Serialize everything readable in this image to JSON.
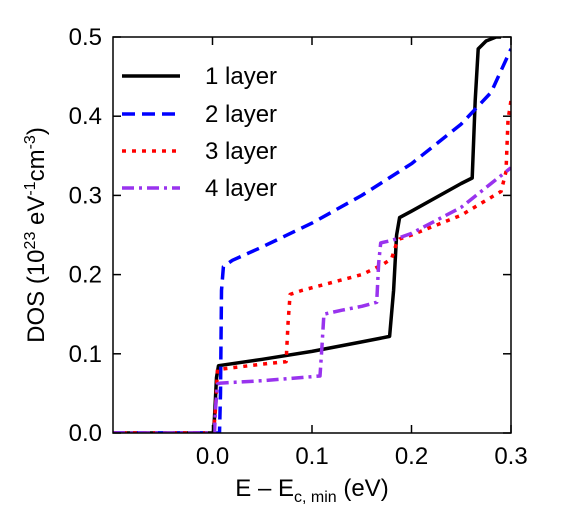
{
  "chart_data": {
    "type": "line",
    "xlabel": {
      "base": "E – E",
      "sub": "c, min",
      "unit": " (eV)"
    },
    "ylabel": {
      "p1": "DOS (10",
      "sup1": "23",
      "p2": " eV",
      "sup2": "-1",
      "p3": "cm",
      "sup3": "-3",
      "p4": ")"
    },
    "xlim": [
      -0.1,
      0.3
    ],
    "ylim": [
      0,
      0.5
    ],
    "xticks": [
      {
        "value": 0.0,
        "label": "0.0"
      },
      {
        "value": 0.1,
        "label": "0.1"
      },
      {
        "value": 0.2,
        "label": "0.2"
      },
      {
        "value": 0.3,
        "label": "0.3"
      }
    ],
    "yticks": [
      {
        "value": 0.0,
        "label": "0.0"
      },
      {
        "value": 0.1,
        "label": "0.1"
      },
      {
        "value": 0.2,
        "label": "0.2"
      },
      {
        "value": 0.3,
        "label": "0.3"
      },
      {
        "value": 0.4,
        "label": "0.4"
      },
      {
        "value": 0.5,
        "label": "0.5"
      }
    ],
    "grid": false,
    "legend_position": "top-left",
    "series": [
      {
        "name": "1 layer",
        "color": "#000000",
        "style": "solid",
        "x": [
          -0.1,
          0.001,
          0.002,
          0.004,
          0.006,
          0.05,
          0.1,
          0.15,
          0.178,
          0.182,
          0.185,
          0.188,
          0.2,
          0.25,
          0.261,
          0.264,
          0.267,
          0.275,
          0.285,
          0.29
        ],
        "y": [
          0,
          0,
          0.02,
          0.07,
          0.085,
          0.093,
          0.103,
          0.115,
          0.122,
          0.18,
          0.25,
          0.272,
          0.28,
          0.315,
          0.322,
          0.42,
          0.485,
          0.495,
          0.5,
          0.5
        ]
      },
      {
        "name": "2 layer",
        "color": "#0000ff",
        "style": "dashed",
        "x": [
          -0.1,
          0.007,
          0.008,
          0.009,
          0.011,
          0.02,
          0.05,
          0.1,
          0.15,
          0.2,
          0.25,
          0.28,
          0.3
        ],
        "y": [
          0,
          0,
          0.05,
          0.18,
          0.21,
          0.218,
          0.235,
          0.265,
          0.3,
          0.34,
          0.39,
          0.43,
          0.485
        ]
      },
      {
        "name": "3 layer",
        "color": "#ff0000",
        "style": "dotted",
        "x": [
          -0.1,
          0.001,
          0.003,
          0.005,
          0.05,
          0.074,
          0.076,
          0.078,
          0.09,
          0.12,
          0.15,
          0.17,
          0.18,
          0.185,
          0.188,
          0.2,
          0.25,
          0.27,
          0.29,
          0.295,
          0.297,
          0.3
        ],
        "y": [
          0,
          0,
          0.03,
          0.08,
          0.087,
          0.09,
          0.14,
          0.175,
          0.18,
          0.19,
          0.2,
          0.212,
          0.22,
          0.24,
          0.245,
          0.25,
          0.275,
          0.29,
          0.305,
          0.33,
          0.395,
          0.42
        ]
      },
      {
        "name": "4 layer",
        "color": "#9933ee",
        "style": "dashdot",
        "x": [
          -0.1,
          0.002,
          0.003,
          0.005,
          0.008,
          0.05,
          0.108,
          0.11,
          0.112,
          0.13,
          0.15,
          0.165,
          0.167,
          0.169,
          0.18,
          0.2,
          0.25,
          0.3
        ],
        "y": [
          0,
          0,
          0.03,
          0.062,
          0.063,
          0.066,
          0.072,
          0.11,
          0.15,
          0.155,
          0.16,
          0.165,
          0.215,
          0.24,
          0.243,
          0.252,
          0.285,
          0.335
        ]
      }
    ]
  }
}
